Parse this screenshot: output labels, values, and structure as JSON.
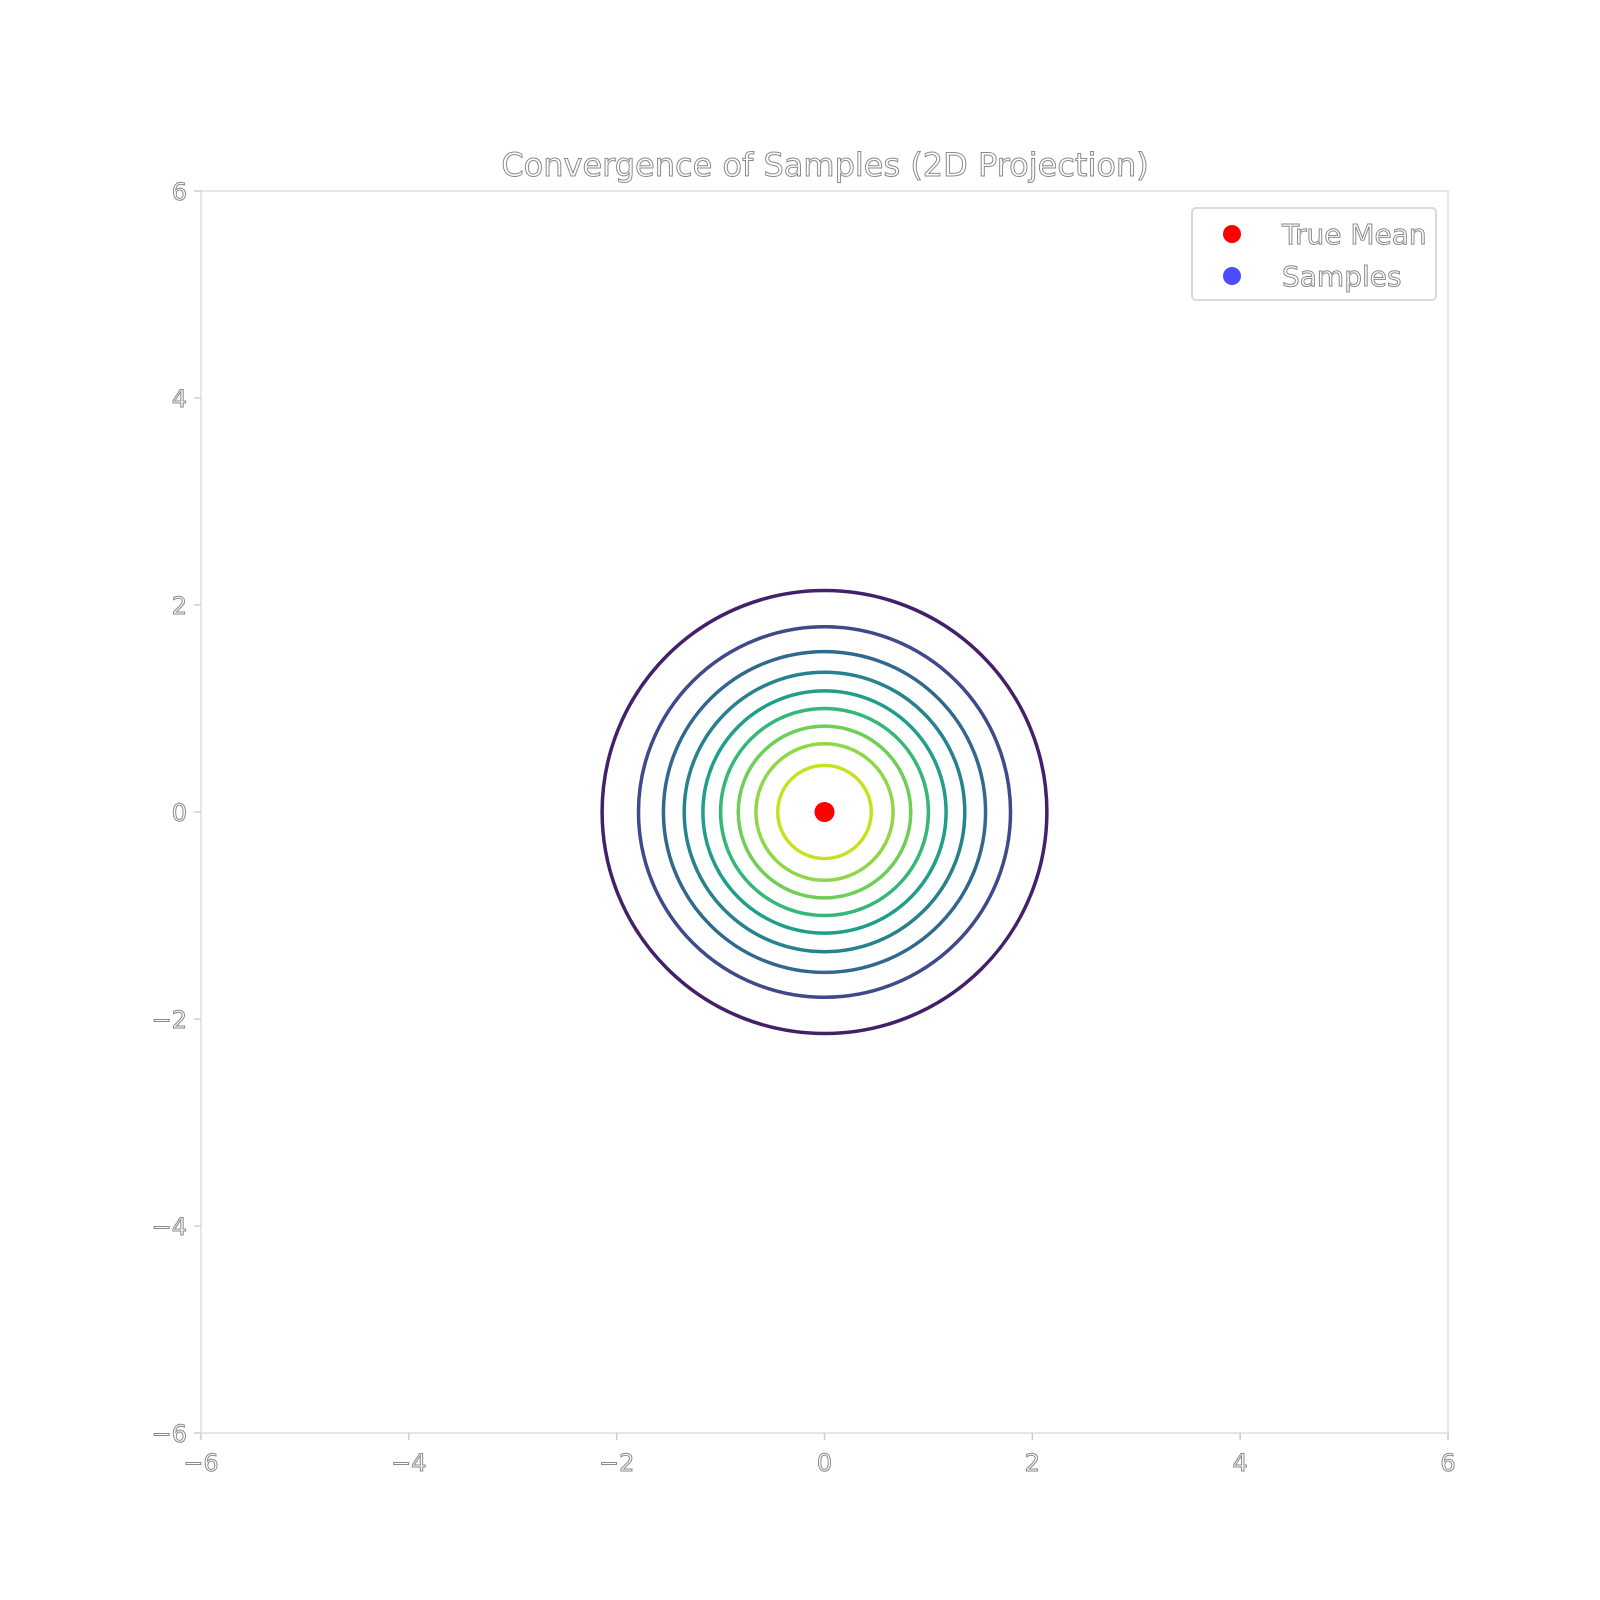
{
  "chart_data": {
    "type": "contour",
    "title": "Convergence of Samples (2D Projection)",
    "xlabel": "",
    "ylabel": "",
    "xlim": [
      -6,
      6
    ],
    "ylim": [
      -6,
      6
    ],
    "x_ticks": [
      -6,
      -4,
      -2,
      0,
      2,
      4,
      6
    ],
    "y_ticks": [
      -6,
      -4,
      -2,
      0,
      2,
      4,
      6
    ],
    "x_tick_labels": [
      "−6",
      "−4",
      "−2",
      "0",
      "2",
      "4",
      "6"
    ],
    "y_tick_labels": [
      "−6",
      "−4",
      "−2",
      "0",
      "2",
      "4",
      "6"
    ],
    "grid": false,
    "legend_position": "top-right",
    "contours": {
      "center": [
        0,
        0
      ],
      "radii": [
        2.14,
        1.79,
        1.55,
        1.35,
        1.17,
        1.0,
        0.83,
        0.66,
        0.45
      ],
      "colors": [
        "#44206b",
        "#3e4a89",
        "#31688e",
        "#26828e",
        "#1f9e89",
        "#35b779",
        "#6ece58",
        "#8fd744",
        "#c8e020"
      ]
    },
    "series": [
      {
        "name": "True Mean",
        "type": "scatter",
        "points": [
          [
            0,
            0
          ]
        ],
        "color": "#ff0000"
      },
      {
        "name": "Samples",
        "type": "scatter",
        "points": [],
        "color": "#0000ff"
      }
    ],
    "legend": [
      {
        "label": "True Mean",
        "color": "#ff0000",
        "opacity": 1
      },
      {
        "label": "Samples",
        "color": "#0000ff",
        "opacity": 0.7
      }
    ]
  }
}
